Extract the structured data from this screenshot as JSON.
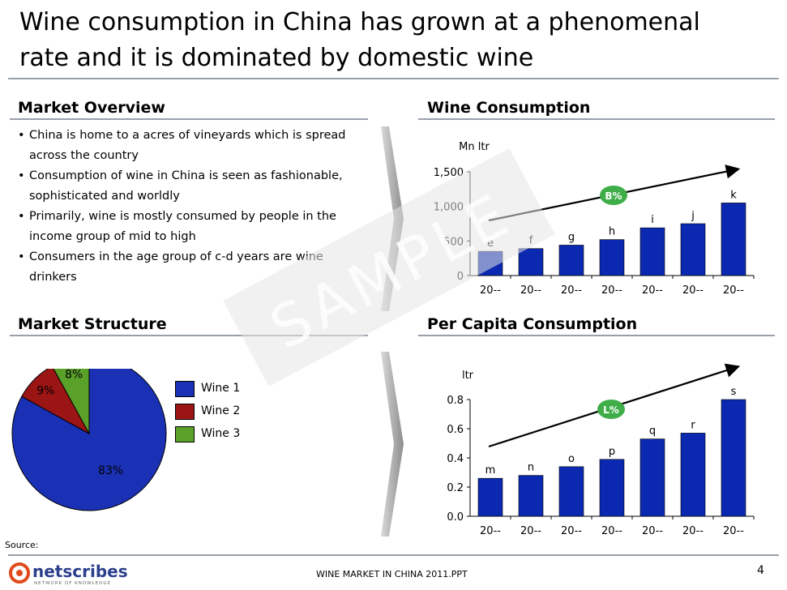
{
  "title": "Wine consumption in China has grown at a phenomenal rate and it is dominated by domestic wine",
  "sections": {
    "market_overview": "Market Overview",
    "wine_consumption": "Wine Consumption",
    "market_structure": "Market Structure",
    "per_capita": "Per Capita Consumption"
  },
  "bullets": [
    "China is home to a acres of vineyards which is spread across the country",
    "Consumption of wine in China is seen as fashionable, sophisticated and worldly",
    "Primarily, wine is mostly consumed by people in the income group of mid to high",
    "Consumers in the age group of c-d years are wine drinkers"
  ],
  "watermark": "SAMPLE",
  "footer": {
    "source": "Source:",
    "doc": "WINE MARKET IN CHINA 2011.PPT",
    "page": "4",
    "logo_text": "netscribes",
    "logo_tagline": "NETWORK OF KNOWLEDGE"
  },
  "colors": {
    "bar_blue": "#0b29b0",
    "wine1": "#1a31b5",
    "wine2": "#9b1515",
    "wine3": "#5aa12a",
    "badge_green": "#3fae49",
    "rule_gray": "#9aa0a8"
  },
  "chart_data": [
    {
      "type": "bar",
      "title": "Wine Consumption",
      "ylabel": "Mn ltr",
      "ylim": [
        0,
        1500
      ],
      "yticks": [
        "0",
        "500",
        "1,000",
        "1,500"
      ],
      "ytick_values": [
        0,
        500,
        1000,
        1500
      ],
      "categories": [
        "20--",
        "20--",
        "20--",
        "20--",
        "20--",
        "20--",
        "20--"
      ],
      "values": [
        350,
        390,
        440,
        520,
        690,
        750,
        1050
      ],
      "data_labels": [
        "e",
        "f",
        "g",
        "h",
        "i",
        "j",
        "k"
      ],
      "trend_label": "B%"
    },
    {
      "type": "bar",
      "title": "Per Capita Consumption",
      "ylabel": "ltr",
      "ylim": [
        0,
        0.8
      ],
      "yticks": [
        "0.0",
        "0.2",
        "0.4",
        "0.6",
        "0.8"
      ],
      "ytick_values": [
        0,
        0.2,
        0.4,
        0.6,
        0.8
      ],
      "categories": [
        "20--",
        "20--",
        "20--",
        "20--",
        "20--",
        "20--",
        "20--"
      ],
      "values": [
        0.26,
        0.28,
        0.34,
        0.39,
        0.53,
        0.57,
        0.8
      ],
      "data_labels": [
        "m",
        "n",
        "o",
        "p",
        "q",
        "r",
        "s"
      ],
      "trend_label": "L%"
    },
    {
      "type": "pie",
      "title": "Market Structure",
      "labels": [
        "Wine 1",
        "Wine 2",
        "Wine 3"
      ],
      "values": [
        83,
        9,
        8
      ],
      "value_labels": [
        "83%",
        "9%",
        "8%"
      ],
      "legend": "right"
    }
  ]
}
